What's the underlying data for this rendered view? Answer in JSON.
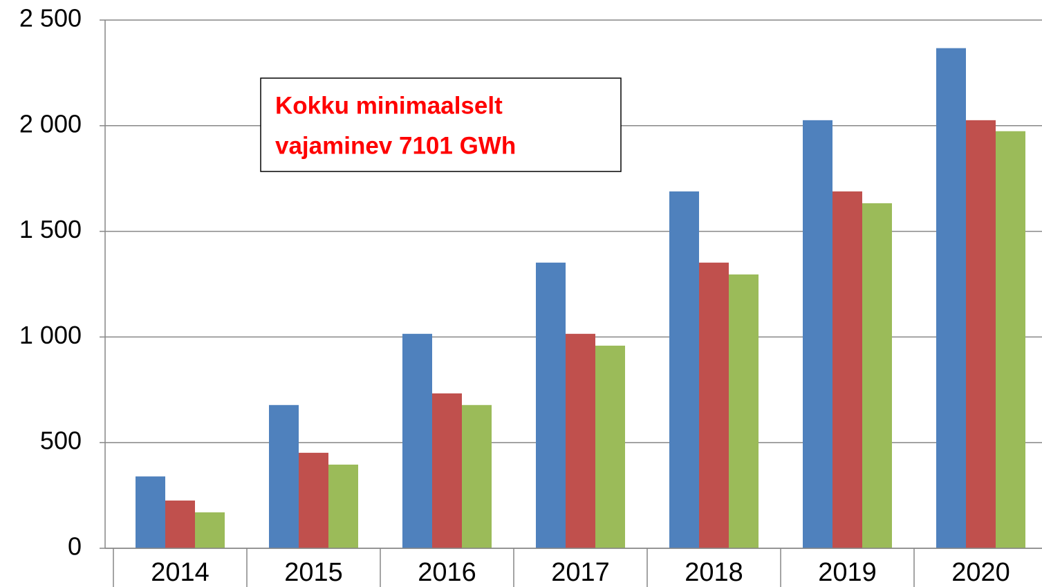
{
  "chart_data": {
    "type": "bar",
    "categories": [
      "2014",
      "2015",
      "2016",
      "2017",
      "2018",
      "2019",
      "2020"
    ],
    "series": [
      {
        "color": "#4f81bd",
        "values": [
          340,
          678,
          1015,
          1352,
          1689,
          2026,
          2367
        ]
      },
      {
        "color": "#c0504d",
        "values": [
          226,
          452,
          733,
          1015,
          1352,
          1689,
          2026
        ]
      },
      {
        "color": "#9bbb59",
        "values": [
          170,
          396,
          678,
          959,
          1296,
          1633,
          1974
        ]
      }
    ],
    "ylim": [
      0,
      2500
    ],
    "yticks": [
      0,
      500,
      {
        "value": 1000,
        "label": "1 000"
      },
      {
        "value": 1500,
        "label": "1 500"
      },
      {
        "value": 2000,
        "label": "2 000"
      },
      {
        "value": 2500,
        "label": "2 500"
      }
    ],
    "grid": true,
    "annotation": [
      "Kokku minimaalselt",
      "vajaminev 7101 GWh"
    ]
  }
}
